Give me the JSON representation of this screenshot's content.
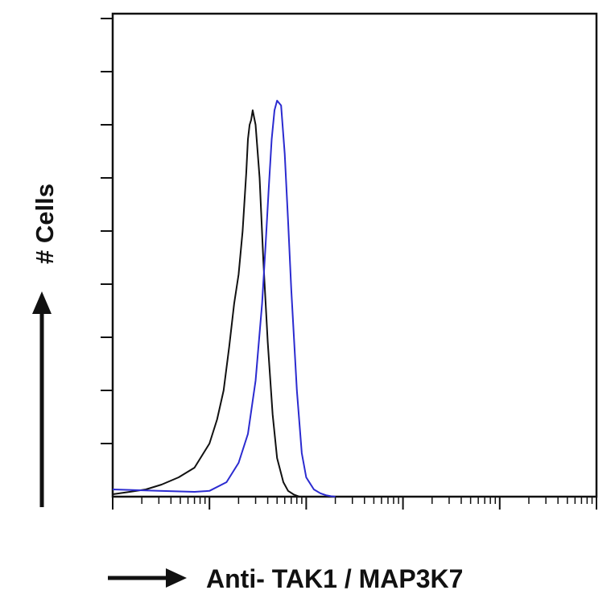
{
  "chart_data": {
    "type": "line",
    "title": "",
    "xlabel": "Anti- TAK1 / MAP3K7",
    "ylabel": "# Cells",
    "x_scale": "log",
    "xlim": [
      1,
      100000
    ],
    "ylim": [
      0,
      100
    ],
    "grid": false,
    "legend": "none",
    "series": [
      {
        "color": "#111111",
        "x": [
          1,
          1.5,
          2.2,
          3.2,
          4.8,
          7,
          10,
          12,
          14,
          16,
          18,
          20,
          22,
          24,
          25,
          26,
          27,
          28,
          30,
          33,
          36,
          40,
          45,
          50,
          58,
          65,
          75,
          85
        ],
        "y": [
          0.5,
          1,
          1.5,
          2.5,
          4,
          6,
          11,
          16,
          22,
          31,
          40,
          46,
          55,
          67,
          74,
          77,
          78,
          80,
          77,
          66,
          49,
          32,
          17,
          8,
          3,
          1.2,
          0.4,
          0
        ]
      },
      {
        "color": "#2b2bd0",
        "x": [
          1,
          3,
          7,
          10,
          15,
          20,
          25,
          30,
          35,
          38,
          41,
          44,
          47,
          50,
          55,
          60,
          65,
          70,
          80,
          90,
          100,
          120,
          140,
          160,
          180,
          200
        ],
        "y": [
          1.5,
          1.2,
          1,
          1.2,
          3,
          7,
          13,
          24,
          40,
          52,
          64,
          74,
          80,
          82,
          81,
          71,
          57,
          43,
          22,
          9,
          4,
          1.5,
          0.7,
          0.3,
          0.1,
          0
        ]
      }
    ]
  }
}
